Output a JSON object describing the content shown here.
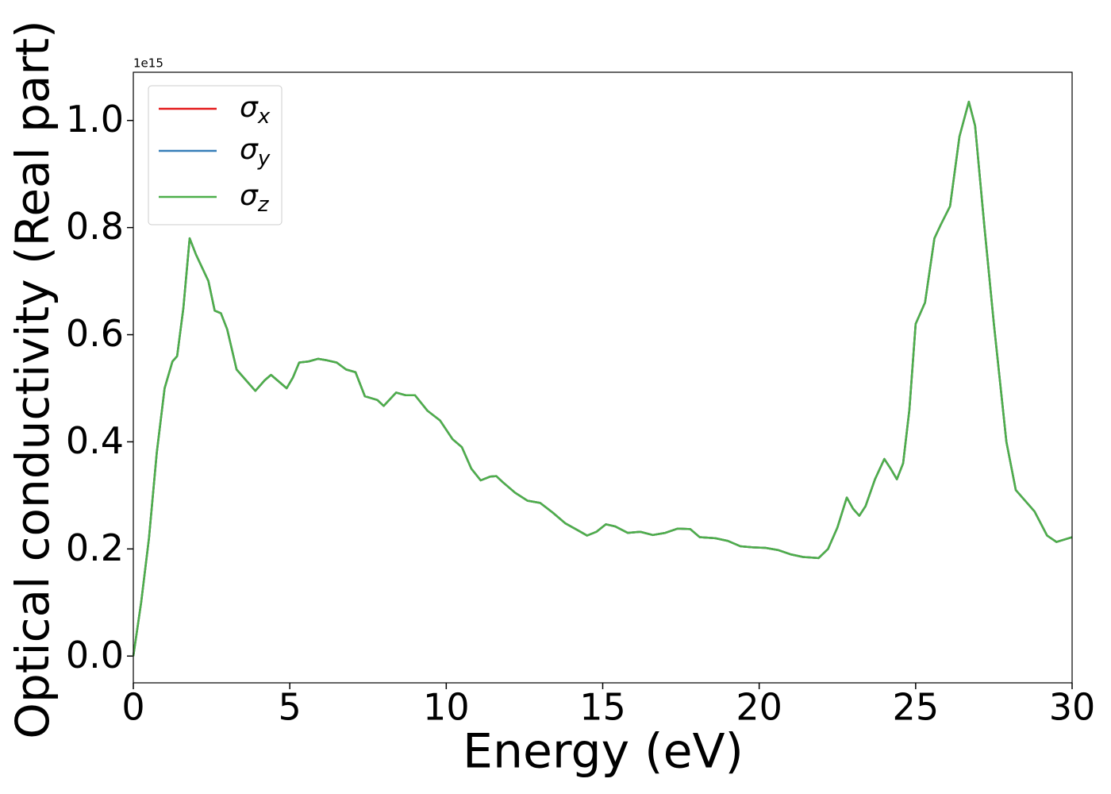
{
  "chart_data": {
    "type": "line",
    "xlabel": "Energy (eV)",
    "ylabel": "Optical conductivity (Real part)",
    "y_offset_label": "1e15",
    "x": [
      0,
      0.25,
      0.5,
      0.75,
      1.0,
      1.25,
      1.4,
      1.6,
      1.8,
      2.0,
      2.2,
      2.4,
      2.6,
      2.8,
      3.0,
      3.3,
      3.6,
      3.9,
      4.2,
      4.4,
      4.7,
      4.9,
      5.1,
      5.3,
      5.6,
      5.9,
      6.2,
      6.5,
      6.8,
      7.1,
      7.4,
      7.8,
      8.0,
      8.4,
      8.7,
      9.0,
      9.4,
      9.8,
      10.2,
      10.5,
      10.8,
      11.1,
      11.4,
      11.6,
      11.8,
      12.2,
      12.6,
      13.0,
      13.4,
      13.8,
      14.2,
      14.5,
      14.8,
      15.1,
      15.4,
      15.8,
      16.2,
      16.6,
      17.0,
      17.4,
      17.8,
      18.1,
      18.6,
      19.0,
      19.4,
      19.8,
      20.2,
      20.6,
      21.0,
      21.4,
      21.9,
      22.2,
      22.5,
      22.8,
      23.0,
      23.2,
      23.4,
      23.7,
      24.0,
      24.2,
      24.4,
      24.6,
      24.8,
      25.0,
      25.3,
      25.6,
      25.8,
      26.1,
      26.4,
      26.7,
      26.9,
      27.2,
      27.5,
      27.9,
      28.2,
      28.5,
      28.8,
      29.2,
      29.5,
      30.0
    ],
    "series": [
      {
        "name": "σx",
        "color": "#e41a1c",
        "values": [
          0.0,
          0.1,
          0.22,
          0.38,
          0.5,
          0.55,
          0.56,
          0.65,
          0.78,
          0.75,
          0.725,
          0.7,
          0.645,
          0.64,
          0.61,
          0.535,
          0.515,
          0.495,
          0.515,
          0.525,
          0.51,
          0.5,
          0.52,
          0.548,
          0.55,
          0.555,
          0.552,
          0.548,
          0.535,
          0.53,
          0.485,
          0.478,
          0.467,
          0.492,
          0.487,
          0.487,
          0.458,
          0.44,
          0.405,
          0.39,
          0.35,
          0.328,
          0.335,
          0.336,
          0.325,
          0.305,
          0.29,
          0.286,
          0.268,
          0.248,
          0.235,
          0.225,
          0.232,
          0.246,
          0.242,
          0.23,
          0.232,
          0.226,
          0.23,
          0.238,
          0.237,
          0.222,
          0.22,
          0.215,
          0.205,
          0.203,
          0.202,
          0.198,
          0.19,
          0.185,
          0.183,
          0.2,
          0.24,
          0.296,
          0.275,
          0.262,
          0.28,
          0.33,
          0.368,
          0.35,
          0.33,
          0.36,
          0.46,
          0.62,
          0.66,
          0.78,
          0.805,
          0.84,
          0.97,
          1.035,
          0.99,
          0.8,
          0.62,
          0.4,
          0.31,
          0.29,
          0.27,
          0.225,
          0.213,
          0.222
        ]
      },
      {
        "name": "σy",
        "color": "#377eb8",
        "values": [
          0.0,
          0.1,
          0.22,
          0.38,
          0.5,
          0.55,
          0.56,
          0.65,
          0.78,
          0.75,
          0.725,
          0.7,
          0.645,
          0.64,
          0.61,
          0.535,
          0.515,
          0.495,
          0.515,
          0.525,
          0.51,
          0.5,
          0.52,
          0.548,
          0.55,
          0.555,
          0.552,
          0.548,
          0.535,
          0.53,
          0.485,
          0.478,
          0.467,
          0.492,
          0.487,
          0.487,
          0.458,
          0.44,
          0.405,
          0.39,
          0.35,
          0.328,
          0.335,
          0.336,
          0.325,
          0.305,
          0.29,
          0.286,
          0.268,
          0.248,
          0.235,
          0.225,
          0.232,
          0.246,
          0.242,
          0.23,
          0.232,
          0.226,
          0.23,
          0.238,
          0.237,
          0.222,
          0.22,
          0.215,
          0.205,
          0.203,
          0.202,
          0.198,
          0.19,
          0.185,
          0.183,
          0.2,
          0.24,
          0.296,
          0.275,
          0.262,
          0.28,
          0.33,
          0.368,
          0.35,
          0.33,
          0.36,
          0.46,
          0.62,
          0.66,
          0.78,
          0.805,
          0.84,
          0.97,
          1.035,
          0.99,
          0.8,
          0.62,
          0.4,
          0.31,
          0.29,
          0.27,
          0.225,
          0.213,
          0.222
        ]
      },
      {
        "name": "σz",
        "color": "#4daf4a",
        "values": [
          0.0,
          0.1,
          0.22,
          0.38,
          0.5,
          0.55,
          0.56,
          0.65,
          0.78,
          0.75,
          0.725,
          0.7,
          0.645,
          0.64,
          0.61,
          0.535,
          0.515,
          0.495,
          0.515,
          0.525,
          0.51,
          0.5,
          0.52,
          0.548,
          0.55,
          0.555,
          0.552,
          0.548,
          0.535,
          0.53,
          0.485,
          0.478,
          0.467,
          0.492,
          0.487,
          0.487,
          0.458,
          0.44,
          0.405,
          0.39,
          0.35,
          0.328,
          0.335,
          0.336,
          0.325,
          0.305,
          0.29,
          0.286,
          0.268,
          0.248,
          0.235,
          0.225,
          0.232,
          0.246,
          0.242,
          0.23,
          0.232,
          0.226,
          0.23,
          0.238,
          0.237,
          0.222,
          0.22,
          0.215,
          0.205,
          0.203,
          0.202,
          0.198,
          0.19,
          0.185,
          0.183,
          0.2,
          0.24,
          0.296,
          0.275,
          0.262,
          0.28,
          0.33,
          0.368,
          0.35,
          0.33,
          0.36,
          0.46,
          0.62,
          0.66,
          0.78,
          0.805,
          0.84,
          0.97,
          1.035,
          0.99,
          0.8,
          0.62,
          0.4,
          0.31,
          0.29,
          0.27,
          0.225,
          0.213,
          0.222
        ]
      }
    ],
    "xlim": [
      0,
      30
    ],
    "xticks": [
      0,
      5,
      10,
      15,
      20,
      25,
      30
    ],
    "ylim": [
      -0.05,
      1.09
    ],
    "yticks": [
      {
        "value": 0,
        "label": "0.0"
      },
      {
        "value": 0.2,
        "label": "0.2"
      },
      {
        "value": 0.4,
        "label": "0.4"
      },
      {
        "value": 0.6,
        "label": "0.6"
      },
      {
        "value": 0.8,
        "label": "0.8"
      },
      {
        "value": 1.0,
        "label": "1.0"
      }
    ],
    "grid": false,
    "legend": "upper left"
  }
}
